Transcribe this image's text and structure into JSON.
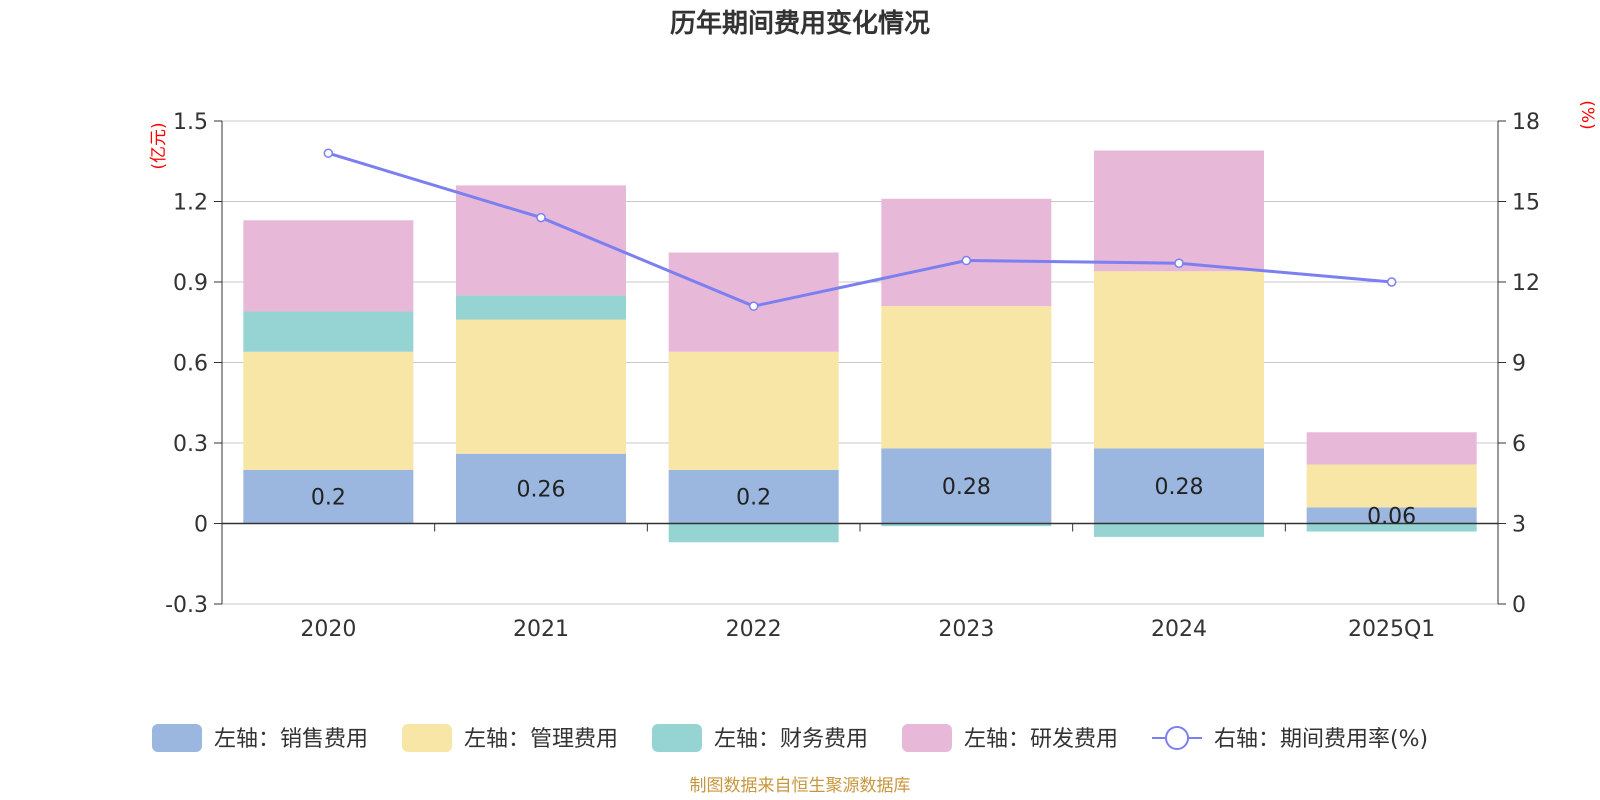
{
  "chart_data": {
    "type": "bar",
    "stacked": true,
    "title": "历年期间费用变化情况",
    "categories": [
      "2020",
      "2021",
      "2022",
      "2023",
      "2024",
      "2025Q1"
    ],
    "left_axis": {
      "unit": "(亿元)",
      "ylim": [
        -0.3,
        1.5
      ],
      "ticks": [
        "1.5",
        "1.2",
        "0.9",
        "0.6",
        "0.3",
        "0",
        "-0.3"
      ],
      "tick_values": [
        1.5,
        1.2,
        0.9,
        0.6,
        0.3,
        0,
        -0.3
      ]
    },
    "right_axis": {
      "unit": "(%)",
      "ylim": [
        0,
        18
      ],
      "ticks": [
        "18",
        "15",
        "12",
        "9",
        "6",
        "3",
        "0"
      ],
      "tick_values": [
        18,
        15,
        12,
        9,
        6,
        3,
        0
      ]
    },
    "series": [
      {
        "name": "左轴：销售费用",
        "axis": "left",
        "kind": "bar",
        "color": "#9bb7e0",
        "values": [
          0.2,
          0.26,
          0.2,
          0.28,
          0.28,
          0.06
        ],
        "labels": [
          "0.2",
          "0.26",
          "0.2",
          "0.28",
          "0.28",
          "0.06"
        ]
      },
      {
        "name": "左轴：管理费用",
        "axis": "left",
        "kind": "bar",
        "color": "#f8e6a6",
        "values": [
          0.44,
          0.5,
          0.44,
          0.53,
          0.66,
          0.16
        ]
      },
      {
        "name": "左轴：财务费用",
        "axis": "left",
        "kind": "bar",
        "color": "#96d4d4",
        "values": [
          0.15,
          0.09,
          -0.07,
          -0.01,
          -0.05,
          -0.03
        ]
      },
      {
        "name": "左轴：研发费用",
        "axis": "left",
        "kind": "bar",
        "color": "#e8b8d8",
        "values": [
          0.34,
          0.41,
          0.37,
          0.4,
          0.45,
          0.12
        ]
      },
      {
        "name": "右轴：期间费用率(%)",
        "axis": "right",
        "kind": "line",
        "color": "#7b7ff0",
        "values": [
          16.8,
          14.4,
          11.1,
          12.8,
          12.7,
          12.0
        ]
      }
    ],
    "grid": true,
    "legend_position": "bottom"
  },
  "source": "制图数据来自恒生聚源数据库"
}
